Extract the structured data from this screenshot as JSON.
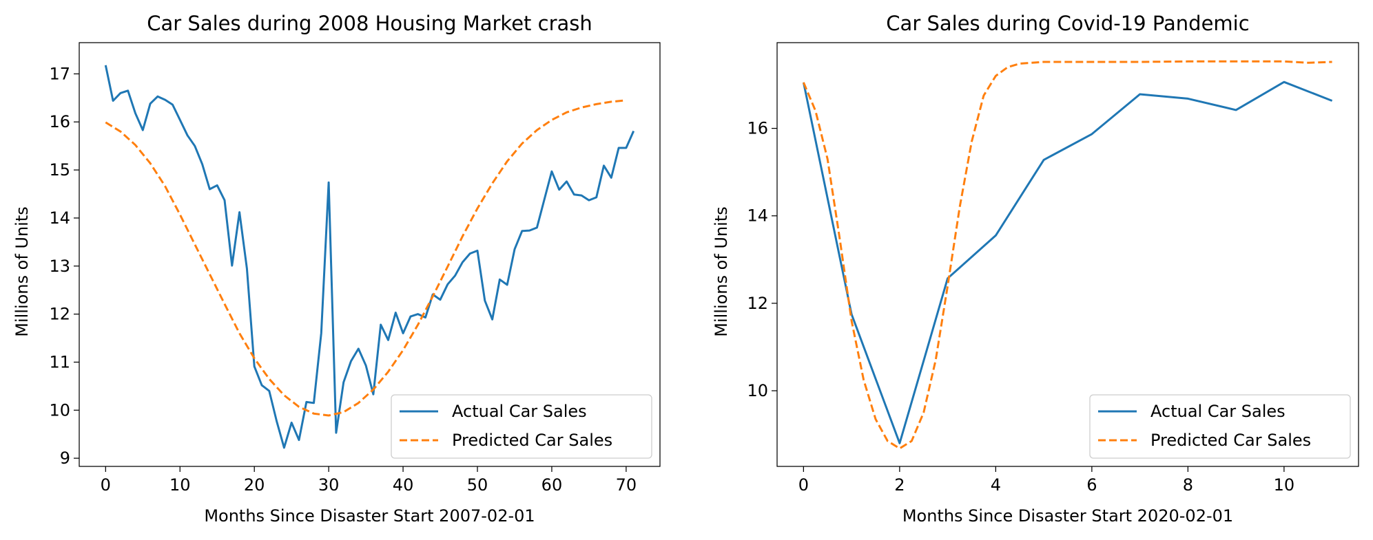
{
  "colors": {
    "actual": "#1f77b4",
    "predicted": "#ff7f0e"
  },
  "chart_data": [
    {
      "type": "line",
      "title": "Car Sales during 2008 Housing Market crash",
      "xlabel": "Months Since Disaster Start 2007-02-01",
      "ylabel": "Millions of Units",
      "xlim": [
        -3.55,
        74.55
      ],
      "ylim": [
        8.83,
        17.65
      ],
      "xticks": [
        0,
        10,
        20,
        30,
        40,
        50,
        60,
        70
      ],
      "yticks": [
        9,
        10,
        11,
        12,
        13,
        14,
        15,
        16,
        17
      ],
      "legend_position": "lower-right",
      "series": [
        {
          "name": "Actual Car Sales",
          "style": "solid",
          "color": "#1f77b4",
          "x": [
            0,
            1,
            2,
            3,
            4,
            5,
            6,
            7,
            8,
            9,
            10,
            11,
            12,
            13,
            14,
            15,
            16,
            17,
            18,
            19,
            20,
            21,
            22,
            23,
            24,
            25,
            26,
            27,
            28,
            29,
            30,
            31,
            32,
            33,
            34,
            35,
            36,
            37,
            38,
            39,
            40,
            41,
            42,
            43,
            44,
            45,
            46,
            47,
            48,
            49,
            50,
            51,
            52,
            53,
            54,
            55,
            56,
            57,
            58,
            59,
            60,
            61,
            62,
            63,
            64,
            65,
            66,
            67,
            68,
            69,
            70,
            71
          ],
          "y": [
            17.18,
            16.44,
            16.6,
            16.65,
            16.18,
            15.83,
            16.38,
            16.53,
            16.46,
            16.36,
            16.04,
            15.72,
            15.5,
            15.12,
            14.6,
            14.68,
            14.37,
            13.01,
            14.12,
            12.95,
            10.91,
            10.52,
            10.4,
            9.77,
            9.22,
            9.74,
            9.38,
            10.17,
            10.15,
            11.6,
            14.74,
            9.53,
            10.58,
            11.02,
            11.28,
            10.93,
            10.33,
            11.78,
            11.46,
            12.03,
            11.6,
            11.95,
            12.0,
            11.93,
            12.41,
            12.3,
            12.62,
            12.8,
            13.08,
            13.26,
            13.32,
            12.28,
            11.89,
            12.72,
            12.61,
            13.35,
            13.73,
            13.74,
            13.8,
            14.39,
            14.97,
            14.59,
            14.76,
            14.49,
            14.47,
            14.37,
            14.43,
            15.09,
            14.84,
            15.46,
            15.46,
            15.81
          ]
        },
        {
          "name": "Predicted Car Sales",
          "style": "dashed",
          "color": "#ff7f0e",
          "x": [
            0,
            2,
            4,
            6,
            8,
            10,
            12,
            14,
            16,
            18,
            20,
            22,
            24,
            26,
            28,
            30,
            32,
            34,
            36,
            38,
            40,
            42,
            44,
            46,
            48,
            50,
            52,
            54,
            56,
            58,
            60,
            62,
            64,
            66,
            68,
            70
          ],
          "y": [
            15.99,
            15.8,
            15.52,
            15.14,
            14.66,
            14.07,
            13.45,
            12.83,
            12.21,
            11.6,
            11.08,
            10.65,
            10.31,
            10.07,
            9.93,
            9.89,
            9.96,
            10.15,
            10.43,
            10.8,
            11.25,
            11.78,
            12.37,
            12.99,
            13.62,
            14.2,
            14.72,
            15.18,
            15.55,
            15.83,
            16.04,
            16.2,
            16.3,
            16.37,
            16.42,
            16.45
          ]
        }
      ]
    },
    {
      "type": "line",
      "title": "Car Sales during Covid-19 Pandemic",
      "xlabel": "Months Since Disaster Start 2020-02-01",
      "ylabel": "Millions of Units",
      "xlim": [
        -0.55,
        11.55
      ],
      "ylim": [
        8.27,
        17.96
      ],
      "xticks": [
        0,
        2,
        4,
        6,
        8,
        10
      ],
      "yticks": [
        10,
        12,
        14,
        16
      ],
      "legend_position": "lower-right",
      "series": [
        {
          "name": "Actual Car Sales",
          "style": "solid",
          "color": "#1f77b4",
          "x": [
            0,
            1,
            2,
            3,
            4,
            5,
            6,
            7,
            8,
            9,
            10,
            11
          ],
          "y": [
            17.05,
            11.75,
            8.8,
            12.57,
            13.55,
            15.28,
            15.87,
            16.78,
            16.68,
            16.42,
            17.06,
            16.63
          ]
        },
        {
          "name": "Predicted Car Sales",
          "style": "dashed",
          "color": "#ff7f0e",
          "x": [
            0,
            0.25,
            0.5,
            0.75,
            1,
            1.25,
            1.5,
            1.75,
            2,
            2.25,
            2.5,
            2.75,
            3,
            3.25,
            3.5,
            3.75,
            4,
            4.25,
            4.5,
            5,
            6,
            7,
            8,
            9,
            10,
            10.5,
            11
          ],
          "y": [
            17.05,
            16.4,
            15.3,
            13.5,
            11.6,
            10.25,
            9.35,
            8.85,
            8.68,
            8.85,
            9.5,
            10.7,
            12.4,
            14.2,
            15.7,
            16.75,
            17.2,
            17.4,
            17.48,
            17.52,
            17.52,
            17.52,
            17.53,
            17.53,
            17.53,
            17.5,
            17.52
          ]
        }
      ]
    }
  ]
}
